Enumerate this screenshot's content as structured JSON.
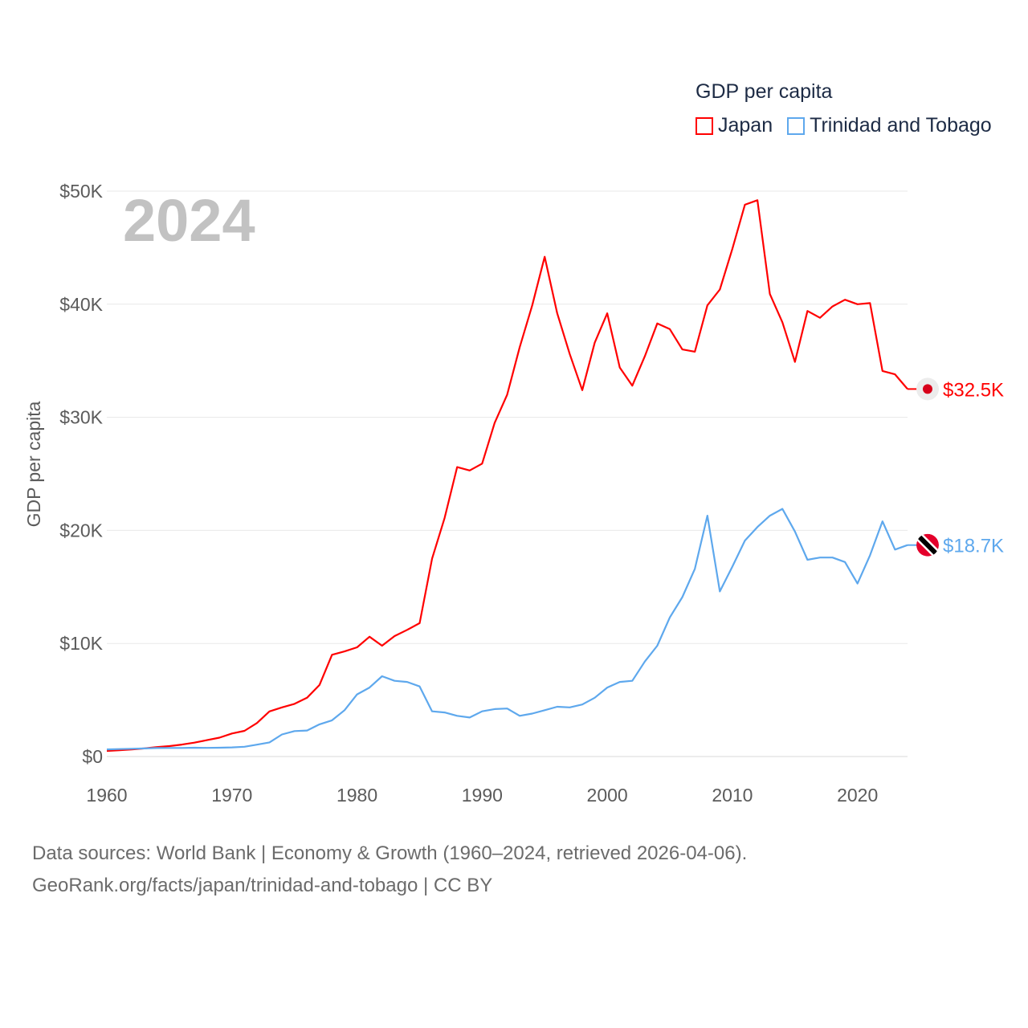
{
  "chart_data": {
    "type": "line",
    "title": "GDP per capita",
    "ylabel": "GDP per capita",
    "xlabel": "",
    "year_label": "2024",
    "xlim": [
      1960,
      2024
    ],
    "ylim": [
      0,
      50000
    ],
    "x_ticks": [
      "1960",
      "1970",
      "1980",
      "1990",
      "2000",
      "2010",
      "2020"
    ],
    "y_ticks": [
      {
        "value": 0,
        "label": "$0"
      },
      {
        "value": 10000,
        "label": "$10K"
      },
      {
        "value": 20000,
        "label": "$20K"
      },
      {
        "value": 30000,
        "label": "$30K"
      },
      {
        "value": 40000,
        "label": "$40K"
      },
      {
        "value": 50000,
        "label": "$50K"
      }
    ],
    "grid": true,
    "legend_placement": "top-right",
    "x": [
      1960,
      1961,
      1962,
      1963,
      1964,
      1965,
      1966,
      1967,
      1968,
      1969,
      1970,
      1971,
      1972,
      1973,
      1974,
      1975,
      1976,
      1977,
      1978,
      1979,
      1980,
      1981,
      1982,
      1983,
      1984,
      1985,
      1986,
      1987,
      1988,
      1989,
      1990,
      1991,
      1992,
      1993,
      1994,
      1995,
      1996,
      1997,
      1998,
      1999,
      2000,
      2001,
      2002,
      2003,
      2004,
      2005,
      2006,
      2007,
      2008,
      2009,
      2010,
      2011,
      2012,
      2013,
      2014,
      2015,
      2016,
      2017,
      2018,
      2019,
      2020,
      2021,
      2022,
      2023,
      2024
    ],
    "series": [
      {
        "name": "Japan",
        "color": "#ff0000",
        "end_label": "$32.5K",
        "values": [
          500,
          560,
          630,
          720,
          840,
          920,
          1060,
          1230,
          1450,
          1670,
          2040,
          2270,
          2960,
          3990,
          4350,
          4660,
          5200,
          6330,
          9000,
          9300,
          9660,
          10600,
          9800,
          10650,
          11200,
          11800,
          17500,
          21100,
          25600,
          25300,
          25900,
          29500,
          32000,
          36200,
          39900,
          44200,
          39200,
          35600,
          32400,
          36600,
          39200,
          34400,
          32800,
          35400,
          38300,
          37800,
          36000,
          35800,
          39900,
          41300,
          44900,
          48800,
          49200,
          40900,
          38400,
          34900,
          39400,
          38800,
          39800,
          40400,
          40000,
          40100,
          34100,
          33800,
          32500
        ]
      },
      {
        "name": "Trinidad and Tobago",
        "color": "#5ea8ed",
        "end_label": "$18.7K",
        "values": [
          630,
          660,
          690,
          720,
          750,
          760,
          760,
          780,
          770,
          780,
          810,
          870,
          1050,
          1250,
          1950,
          2250,
          2300,
          2850,
          3200,
          4100,
          5500,
          6100,
          7100,
          6700,
          6600,
          6200,
          4000,
          3900,
          3600,
          3450,
          4000,
          4200,
          4250,
          3600,
          3800,
          4100,
          4400,
          4350,
          4600,
          5200,
          6100,
          6600,
          6700,
          8400,
          9800,
          12300,
          14100,
          16600,
          21300,
          14600,
          16800,
          19100,
          20300,
          21300,
          21900,
          19900,
          17400,
          17600,
          17600,
          17200,
          15300,
          17800,
          20800,
          18300,
          18700
        ]
      }
    ]
  },
  "legend": {
    "title": "GDP per capita",
    "items": [
      "Japan",
      "Trinidad and Tobago"
    ]
  },
  "footer": {
    "line1": "Data sources: World Bank | Economy & Growth (1960–2024, retrieved 2026-04-06).",
    "line2": "GeoRank.org/facts/japan/trinidad-and-tobago | CC BY"
  }
}
